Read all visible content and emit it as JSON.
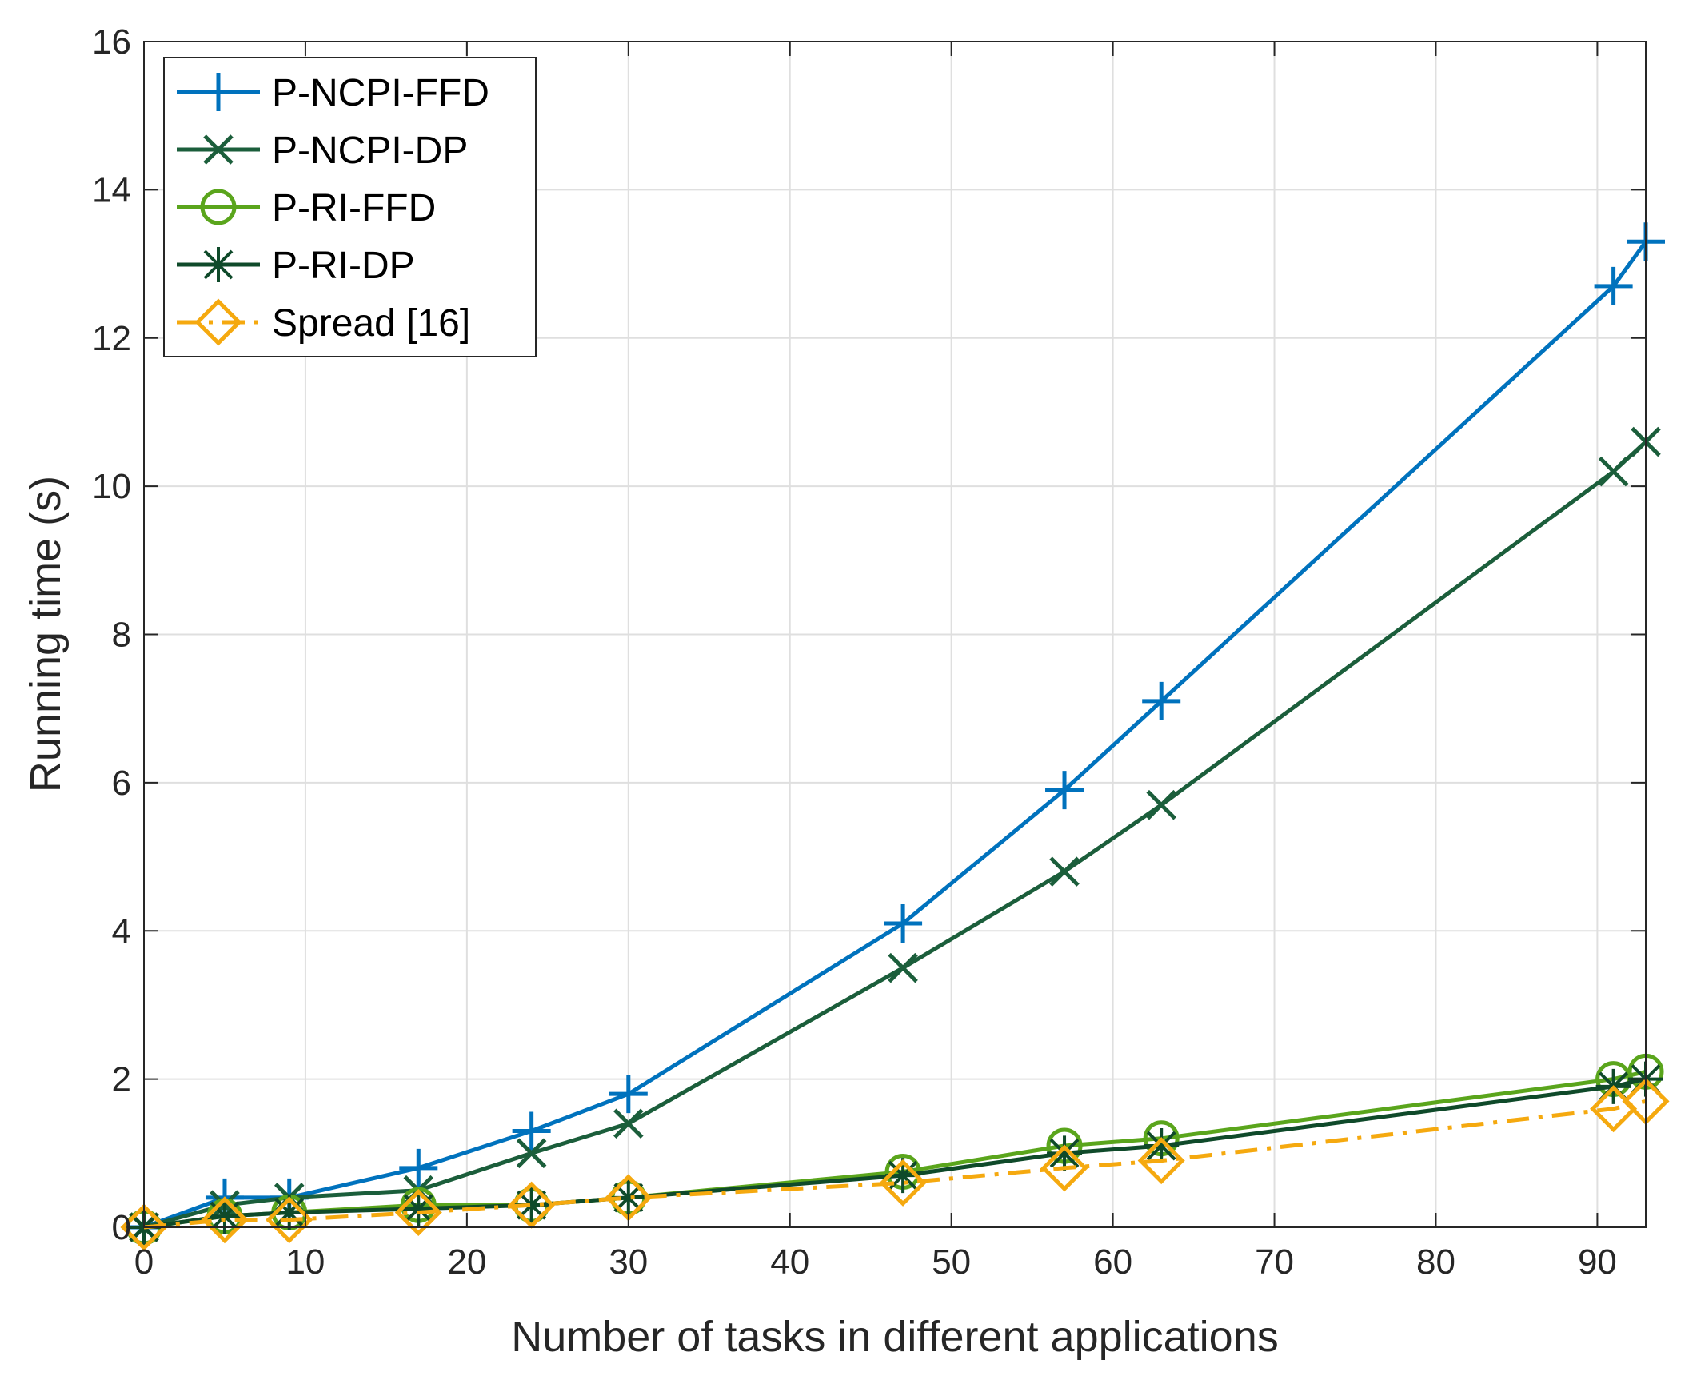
{
  "chart_data": {
    "type": "line",
    "title": "",
    "xlabel": "Number of tasks in different applications",
    "ylabel": "Running time (s)",
    "xlim": [
      0,
      93
    ],
    "ylim": [
      0,
      16
    ],
    "xticks": [
      0,
      10,
      20,
      30,
      40,
      50,
      60,
      70,
      80,
      90
    ],
    "yticks": [
      0,
      2,
      4,
      6,
      8,
      10,
      12,
      14,
      16
    ],
    "grid": true,
    "legend_position": "top-left",
    "x": [
      0,
      5,
      9,
      17,
      24,
      30,
      47,
      57,
      63,
      91,
      93
    ],
    "series": [
      {
        "name": "P-NCPI-FFD",
        "color": "#0072bd",
        "marker": "plus",
        "dash": "solid",
        "values": [
          0,
          0.4,
          0.4,
          0.8,
          1.3,
          1.8,
          4.1,
          5.9,
          7.1,
          12.7,
          13.3
        ]
      },
      {
        "name": "P-NCPI-DP",
        "color": "#1b5e3b",
        "marker": "x",
        "dash": "solid",
        "values": [
          0,
          0.3,
          0.4,
          0.5,
          1.0,
          1.4,
          3.5,
          4.8,
          5.7,
          10.2,
          10.6
        ]
      },
      {
        "name": "P-RI-FFD",
        "color": "#5aa51c",
        "marker": "circle",
        "dash": "solid",
        "values": [
          0,
          0.15,
          0.2,
          0.3,
          0.3,
          0.4,
          0.75,
          1.1,
          1.2,
          2.0,
          2.1
        ]
      },
      {
        "name": "P-RI-DP",
        "color": "#0f4a2a",
        "marker": "asterisk",
        "dash": "solid",
        "values": [
          0,
          0.15,
          0.2,
          0.25,
          0.3,
          0.4,
          0.7,
          1.0,
          1.1,
          1.9,
          2.0
        ]
      },
      {
        "name": "Spread [16]",
        "color": "#f5a90f",
        "marker": "diamond",
        "dash": "dashdot",
        "values": [
          0,
          0.1,
          0.1,
          0.2,
          0.3,
          0.4,
          0.6,
          0.8,
          0.9,
          1.6,
          1.7
        ]
      }
    ]
  }
}
